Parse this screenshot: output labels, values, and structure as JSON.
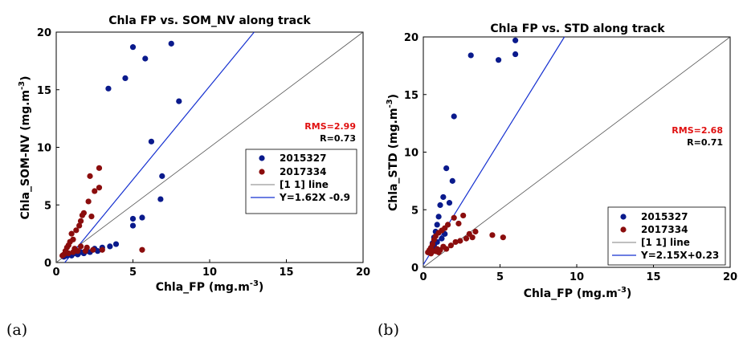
{
  "colors": {
    "series_2015": "#0a1a8c",
    "series_2017": "#8b0d0d",
    "one_one_line": "#555555",
    "fit_line": "#1530d0",
    "rms_text": "#e01010"
  },
  "chart_data": [
    {
      "type": "scatter",
      "panel_label": "(a)",
      "title": "Chla FP vs. SOM_NV along track",
      "xlabel": "Chla_FP (mg.m",
      "xlabel_sup": "-3",
      "xlabel_close": ")",
      "ylabel": "Chla_SOM-NV (mg.m",
      "ylabel_sup": "-3",
      "ylabel_close": ")",
      "xlim": [
        0,
        20
      ],
      "ylim": [
        0,
        20
      ],
      "xticks": [
        0,
        5,
        10,
        15,
        20
      ],
      "yticks": [
        0,
        5,
        10,
        15,
        20
      ],
      "grid": false,
      "legend_position": "right",
      "rms_text": "RMS=2.99",
      "r_text": "R=0.73",
      "legend": [
        "2015327",
        "2017334",
        "[1 1] line",
        "Y=1.62X -0.9"
      ],
      "fit": {
        "slope": 1.62,
        "intercept": -0.9
      },
      "series": [
        {
          "name": "2015327",
          "points": [
            [
              3.4,
              15.1
            ],
            [
              4.5,
              16.0
            ],
            [
              5.0,
              18.7
            ],
            [
              5.8,
              17.7
            ],
            [
              7.5,
              19.0
            ],
            [
              8.0,
              14.0
            ],
            [
              6.2,
              10.5
            ],
            [
              6.9,
              7.5
            ],
            [
              6.8,
              5.5
            ],
            [
              5.0,
              3.8
            ],
            [
              5.6,
              3.9
            ],
            [
              5.0,
              3.2
            ],
            [
              3.0,
              1.3
            ],
            [
              3.5,
              1.4
            ],
            [
              3.9,
              1.6
            ],
            [
              2.5,
              1.2
            ],
            [
              2.0,
              1.0
            ],
            [
              1.6,
              0.9
            ],
            [
              1.2,
              0.8
            ],
            [
              0.9,
              0.7
            ],
            [
              0.7,
              0.6
            ],
            [
              1.0,
              0.6
            ],
            [
              1.4,
              0.7
            ],
            [
              1.8,
              0.8
            ],
            [
              2.2,
              0.9
            ],
            [
              2.7,
              1.0
            ],
            [
              0.5,
              0.5
            ]
          ]
        },
        {
          "name": "2017334",
          "points": [
            [
              2.8,
              8.2
            ],
            [
              2.2,
              7.5
            ],
            [
              2.8,
              6.5
            ],
            [
              2.5,
              6.2
            ],
            [
              2.1,
              5.3
            ],
            [
              1.8,
              4.3
            ],
            [
              1.7,
              4.1
            ],
            [
              2.3,
              4.0
            ],
            [
              1.6,
              3.6
            ],
            [
              1.5,
              3.2
            ],
            [
              1.3,
              2.8
            ],
            [
              1.0,
              2.5
            ],
            [
              0.9,
              1.8
            ],
            [
              1.1,
              2.0
            ],
            [
              0.8,
              1.5
            ],
            [
              0.7,
              1.3
            ],
            [
              0.6,
              1.0
            ],
            [
              0.5,
              0.7
            ],
            [
              0.4,
              0.6
            ],
            [
              1.2,
              1.2
            ],
            [
              1.6,
              1.4
            ],
            [
              2.0,
              1.3
            ],
            [
              1.4,
              1.0
            ],
            [
              1.9,
              1.0
            ],
            [
              2.4,
              1.1
            ],
            [
              3.0,
              1.1
            ],
            [
              1.1,
              0.9
            ],
            [
              0.8,
              0.8
            ],
            [
              5.6,
              1.1
            ]
          ]
        }
      ]
    },
    {
      "type": "scatter",
      "panel_label": "(b)",
      "title": "Chla FP vs. STD along track",
      "xlabel": "Chla_FP (mg.m",
      "xlabel_sup": "-3",
      "xlabel_close": ")",
      "ylabel": "Chla_STD (mg.m",
      "ylabel_sup": "-3",
      "ylabel_close": ")",
      "xlim": [
        0,
        20
      ],
      "ylim": [
        0,
        20
      ],
      "xticks": [
        0,
        5,
        10,
        15,
        20
      ],
      "yticks": [
        0,
        5,
        10,
        15,
        20
      ],
      "grid": false,
      "legend_position": "bottom-right",
      "rms_text": "RMS=2.68",
      "r_text": "R=0.71",
      "legend": [
        "2015327",
        "2017334",
        "[1 1] line",
        "Y=2.15X+0.23"
      ],
      "fit": {
        "slope": 2.15,
        "intercept": 0.23
      },
      "series": [
        {
          "name": "2015327",
          "points": [
            [
              6.0,
              19.7
            ],
            [
              3.1,
              18.4
            ],
            [
              4.9,
              18.0
            ],
            [
              6.0,
              18.5
            ],
            [
              2.0,
              13.1
            ],
            [
              1.5,
              8.6
            ],
            [
              1.9,
              7.5
            ],
            [
              1.3,
              6.1
            ],
            [
              1.7,
              5.6
            ],
            [
              1.1,
              5.4
            ],
            [
              1.0,
              4.4
            ],
            [
              0.9,
              3.7
            ],
            [
              0.8,
              3.1
            ],
            [
              0.7,
              2.6
            ],
            [
              0.6,
              2.1
            ],
            [
              0.5,
              1.7
            ],
            [
              0.4,
              1.4
            ],
            [
              0.9,
              2.2
            ],
            [
              1.2,
              2.5
            ],
            [
              0.6,
              1.6
            ],
            [
              1.4,
              2.9
            ],
            [
              0.7,
              1.9
            ]
          ]
        },
        {
          "name": "2017334",
          "points": [
            [
              4.5,
              2.8
            ],
            [
              5.2,
              2.6
            ],
            [
              3.4,
              3.1
            ],
            [
              3.0,
              2.9
            ],
            [
              2.6,
              4.5
            ],
            [
              2.3,
              3.8
            ],
            [
              2.0,
              4.3
            ],
            [
              1.6,
              3.7
            ],
            [
              1.4,
              3.4
            ],
            [
              1.2,
              3.2
            ],
            [
              1.0,
              3.0
            ],
            [
              0.8,
              2.7
            ],
            [
              0.7,
              2.4
            ],
            [
              0.6,
              2.0
            ],
            [
              0.5,
              1.7
            ],
            [
              0.4,
              1.5
            ],
            [
              0.3,
              1.3
            ],
            [
              0.5,
              1.2
            ],
            [
              0.8,
              1.4
            ],
            [
              1.1,
              1.5
            ],
            [
              1.5,
              1.6
            ],
            [
              1.8,
              1.9
            ],
            [
              2.1,
              2.2
            ],
            [
              2.4,
              2.3
            ],
            [
              2.8,
              2.5
            ],
            [
              3.2,
              2.6
            ],
            [
              1.0,
              1.3
            ],
            [
              0.6,
              1.4
            ],
            [
              1.3,
              1.8
            ],
            [
              0.9,
              1.6
            ]
          ]
        }
      ]
    }
  ]
}
